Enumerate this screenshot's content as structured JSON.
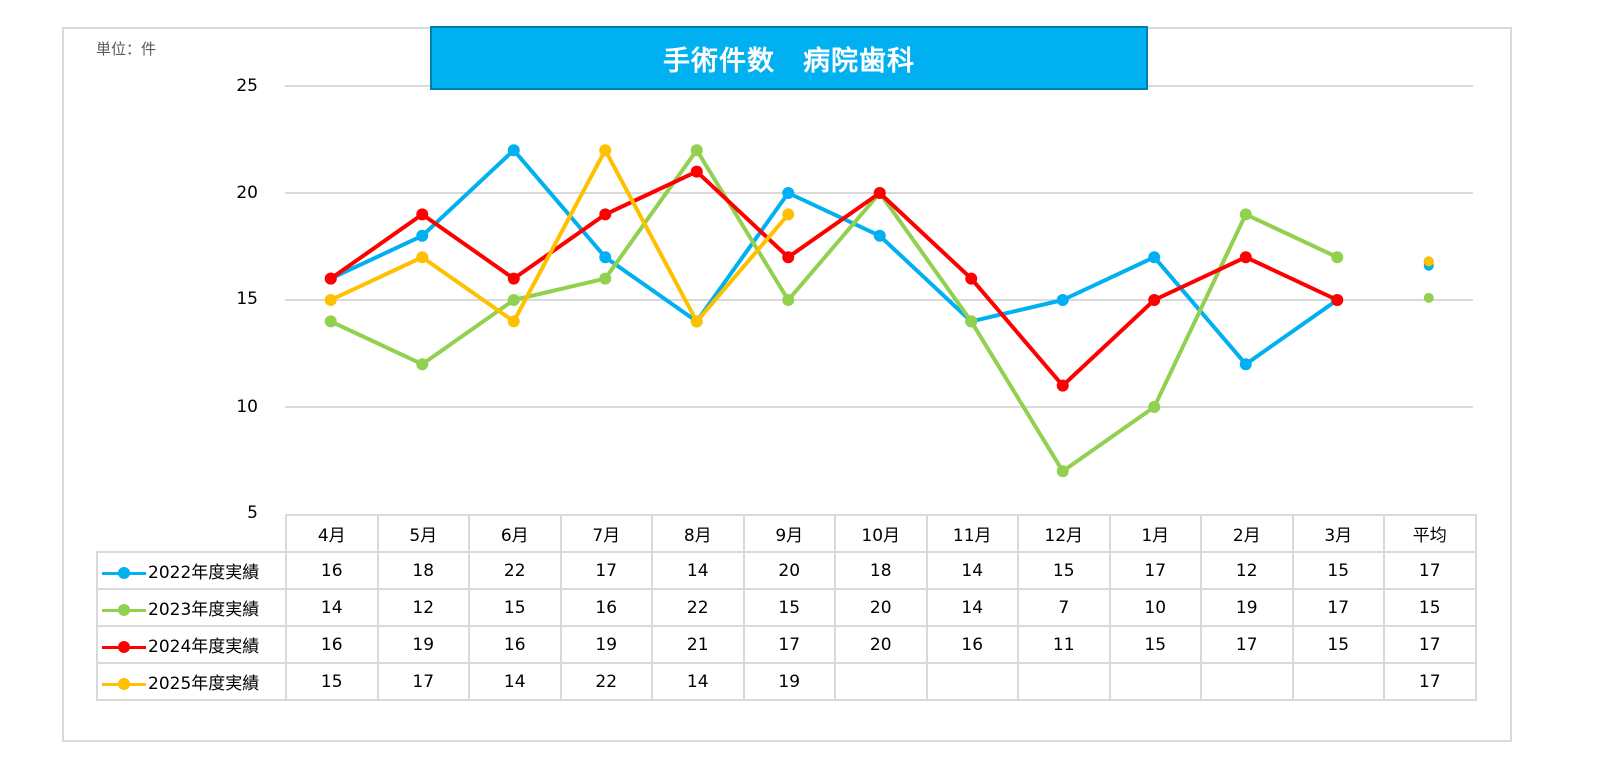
{
  "chart_data": {
    "type": "line",
    "title": "手術件数　病院歯科",
    "unit_label": "単位：件",
    "xlabel": "",
    "ylabel": "",
    "ylim": [
      5,
      25
    ],
    "yticks": [
      "25",
      "20",
      "15",
      "10",
      "5"
    ],
    "grid": true,
    "legend_position": "data-table",
    "categories": [
      "4月",
      "5月",
      "6月",
      "7月",
      "8月",
      "9月",
      "10月",
      "11月",
      "12月",
      "1月",
      "2月",
      "3月",
      "平均"
    ],
    "series": [
      {
        "name": "2022年度実績",
        "color": "#00b0f0",
        "values": [
          16,
          18,
          22,
          17,
          14,
          20,
          18,
          14,
          15,
          17,
          12,
          15
        ],
        "average_plotted": 16.6,
        "average_label": "17",
        "table": [
          "16",
          "18",
          "22",
          "17",
          "14",
          "20",
          "18",
          "14",
          "15",
          "17",
          "12",
          "15",
          "17"
        ]
      },
      {
        "name": "2023年度実績",
        "color": "#92d050",
        "values": [
          14,
          12,
          15,
          16,
          22,
          15,
          20,
          14,
          7,
          10,
          19,
          17
        ],
        "average_plotted": 15.1,
        "average_label": "15",
        "table": [
          "14",
          "12",
          "15",
          "16",
          "22",
          "15",
          "20",
          "14",
          "7",
          "10",
          "19",
          "17",
          "15"
        ]
      },
      {
        "name": "2024年度実績",
        "color": "#ff0000",
        "values": [
          16,
          19,
          16,
          19,
          21,
          17,
          20,
          16,
          11,
          15,
          17,
          15
        ],
        "average_plotted": 16.8,
        "average_label": "17",
        "table": [
          "16",
          "19",
          "16",
          "19",
          "21",
          "17",
          "20",
          "16",
          "11",
          "15",
          "17",
          "15",
          "17"
        ]
      },
      {
        "name": "2025年度実績",
        "color": "#ffc000",
        "values": [
          15,
          17,
          14,
          22,
          14,
          19
        ],
        "average_plotted": 16.8,
        "average_label": "17",
        "table": [
          "15",
          "17",
          "14",
          "22",
          "14",
          "19",
          "",
          "",
          "",
          "",
          "",
          "",
          "17"
        ]
      }
    ]
  }
}
